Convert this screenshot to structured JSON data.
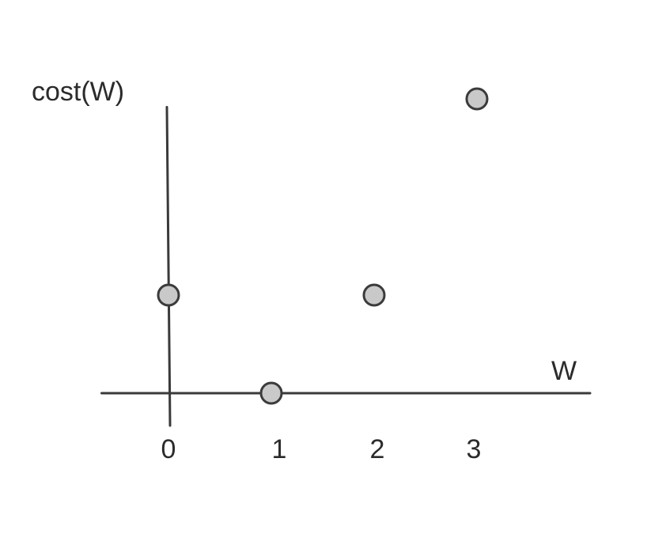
{
  "chart_data": {
    "type": "scatter",
    "title": "",
    "xlabel": "W",
    "ylabel": "cost(W)",
    "x_ticks": [
      "0",
      "1",
      "2",
      "3"
    ],
    "xlim": [
      -0.65,
      4.1
    ],
    "ylim": [
      -0.25,
      2.9
    ],
    "grid": false,
    "points": [
      {
        "x": 0,
        "y": 1
      },
      {
        "x": 1,
        "y": 0
      },
      {
        "x": 2,
        "y": 1
      },
      {
        "x": 3,
        "y": 3
      }
    ]
  }
}
